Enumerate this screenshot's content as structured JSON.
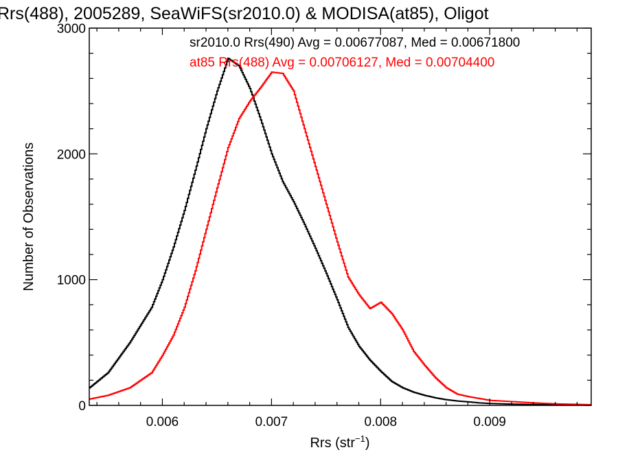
{
  "chart_data": {
    "type": "line",
    "title": "Rrs(488), 2005289, SeaWiFS(sr2010.0) & MODISA(at85), Oligot",
    "xlabel": "Rrs (str",
    "xlabel_sup": "−1",
    "xlabel_close": ")",
    "ylabel": "Number of Observations",
    "xlim": [
      0.00533,
      0.00993
    ],
    "ylim": [
      0,
      3000
    ],
    "x_ticks": [
      0.006,
      0.007,
      0.008,
      0.009
    ],
    "x_tick_labels": [
      "0.006",
      "0.007",
      "0.008",
      "0.009"
    ],
    "y_ticks": [
      0,
      1000,
      2000,
      3000
    ],
    "y_tick_labels": [
      "0",
      "1000",
      "2000",
      "3000"
    ],
    "grid": false,
    "step": true,
    "series": [
      {
        "name": "sr2010.0 Rrs(490) Avg = 0.00677087, Med = 0.00671800",
        "color": "#000000",
        "x": [
          0.00533,
          0.0055,
          0.0057,
          0.0059,
          0.006,
          0.0061,
          0.0062,
          0.0063,
          0.0064,
          0.0065,
          0.0066,
          0.0067,
          0.0068,
          0.0069,
          0.007,
          0.0071,
          0.0072,
          0.0073,
          0.0074,
          0.0075,
          0.0076,
          0.0077,
          0.0078,
          0.0079,
          0.008,
          0.0081,
          0.0082,
          0.0083,
          0.0084,
          0.0085,
          0.0086,
          0.0087,
          0.0088,
          0.0089,
          0.009,
          0.0092,
          0.0094,
          0.0096,
          0.0098,
          0.00993
        ],
        "y": [
          140,
          260,
          500,
          780,
          1000,
          1260,
          1550,
          1870,
          2200,
          2500,
          2760,
          2700,
          2520,
          2270,
          2000,
          1780,
          1620,
          1440,
          1250,
          1050,
          840,
          620,
          470,
          360,
          270,
          190,
          140,
          105,
          80,
          60,
          45,
          35,
          28,
          20,
          15,
          10,
          7,
          5,
          3,
          2
        ]
      },
      {
        "name": "at85 Rrs(488) Avg = 0.00706127, Med = 0.00704400",
        "color": "#ff0000",
        "x": [
          0.00533,
          0.0055,
          0.0057,
          0.0059,
          0.006,
          0.0061,
          0.0062,
          0.0063,
          0.0064,
          0.0065,
          0.0066,
          0.0067,
          0.0068,
          0.0069,
          0.007,
          0.0071,
          0.0072,
          0.0073,
          0.0074,
          0.0075,
          0.0076,
          0.0077,
          0.0078,
          0.0079,
          0.008,
          0.0081,
          0.0082,
          0.0083,
          0.0084,
          0.0085,
          0.0086,
          0.0087,
          0.0088,
          0.0089,
          0.009,
          0.0092,
          0.0094,
          0.0096,
          0.0098,
          0.00993
        ],
        "y": [
          50,
          80,
          140,
          260,
          400,
          560,
          780,
          1070,
          1400,
          1730,
          2050,
          2280,
          2420,
          2530,
          2650,
          2640,
          2500,
          2200,
          1900,
          1600,
          1300,
          1020,
          880,
          770,
          820,
          730,
          600,
          430,
          320,
          220,
          140,
          90,
          70,
          55,
          40,
          30,
          20,
          12,
          8,
          5
        ]
      }
    ]
  }
}
